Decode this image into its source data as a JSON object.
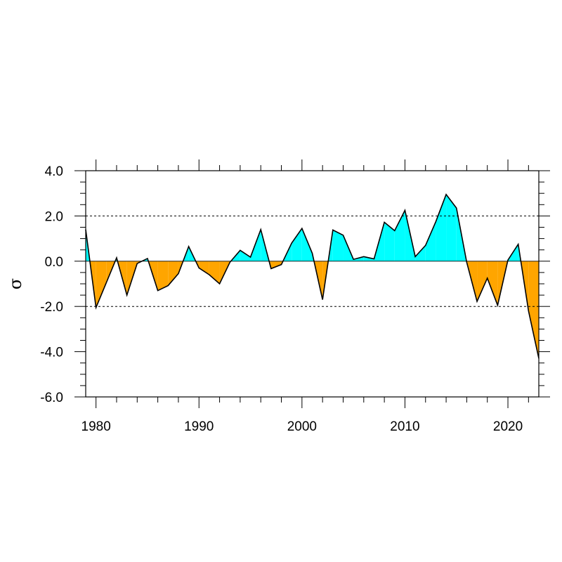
{
  "chart_data": {
    "type": "area",
    "title": "",
    "xlabel": "",
    "ylabel": "σ",
    "xlim": [
      1979,
      2023
    ],
    "ylim": [
      -6,
      4
    ],
    "x_ticks": [
      1980,
      1990,
      2000,
      2010,
      2020
    ],
    "x_tick_labels": [
      "1980",
      "1990",
      "2000",
      "2010",
      "2020"
    ],
    "y_ticks": [
      -6,
      -4,
      -2,
      0,
      2,
      4
    ],
    "y_tick_labels": [
      "-6.0",
      "-4.0",
      "-2.0",
      "0.0",
      "2.0",
      "4.0"
    ],
    "reference_lines": [
      2,
      -2
    ],
    "positive_color": "#00ffff",
    "negative_color": "#ffa500",
    "line_color": "#000000",
    "grid": false,
    "series": [
      {
        "x": [
          1979,
          1980,
          1981,
          1982,
          1983,
          1984,
          1985,
          1986,
          1987,
          1988,
          1989,
          1990,
          1991,
          1992,
          1993,
          1994,
          1995,
          1996,
          1997,
          1998,
          1999,
          2000,
          2001,
          2002,
          2003,
          2004,
          2005,
          2006,
          2007,
          2008,
          2009,
          2010,
          2011,
          2012,
          2013,
          2014,
          2015,
          2016,
          2017,
          2018,
          2019,
          2020,
          2021,
          2022,
          2023
        ],
        "values": [
          1.4,
          -2.05,
          -0.95,
          0.15,
          -1.5,
          -0.1,
          0.12,
          -1.3,
          -1.08,
          -0.55,
          0.65,
          -0.3,
          -0.6,
          -1.0,
          -0.05,
          0.48,
          0.18,
          1.4,
          -0.33,
          -0.15,
          0.8,
          1.45,
          0.35,
          -1.7,
          1.38,
          1.15,
          0.08,
          0.2,
          0.1,
          1.72,
          1.35,
          2.25,
          0.2,
          0.7,
          1.75,
          2.95,
          2.35,
          -0.05,
          -1.78,
          -0.75,
          -1.95,
          0.05,
          0.75,
          -2.2,
          -4.3
        ]
      }
    ]
  }
}
